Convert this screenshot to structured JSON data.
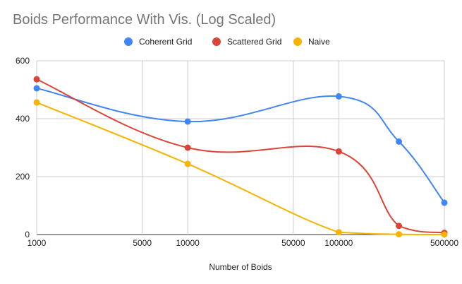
{
  "chart_data": {
    "type": "line",
    "title": "Boids Performance With Vis. (Log Scaled)",
    "xlabel": "Number of Boids",
    "ylabel": "",
    "x_scale": "log",
    "xlim": [
      1000,
      500000
    ],
    "ylim": [
      0,
      600
    ],
    "x_ticks": [
      1000,
      5000,
      10000,
      50000,
      100000,
      500000
    ],
    "y_ticks": [
      0,
      200,
      400,
      600
    ],
    "grid": true,
    "legend_position": "top",
    "series": [
      {
        "name": "Coherent Grid",
        "color": "#4285f4",
        "points": [
          [
            1000,
            505
          ],
          [
            10000,
            390
          ],
          [
            100000,
            477
          ],
          [
            250000,
            321
          ],
          [
            500000,
            110
          ]
        ]
      },
      {
        "name": "Scattered Grid",
        "color": "#db4437",
        "points": [
          [
            1000,
            536
          ],
          [
            10000,
            300
          ],
          [
            100000,
            287
          ],
          [
            250000,
            30
          ],
          [
            500000,
            6
          ]
        ]
      },
      {
        "name": "Naive",
        "color": "#f4b400",
        "points": [
          [
            1000,
            456
          ],
          [
            10000,
            244
          ],
          [
            100000,
            8
          ],
          [
            250000,
            1
          ],
          [
            500000,
            0
          ]
        ]
      }
    ]
  }
}
